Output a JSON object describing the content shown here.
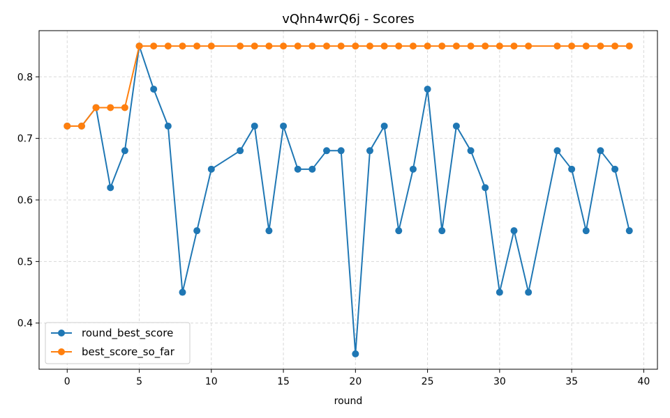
{
  "chart_data": {
    "type": "line",
    "title": "vQhn4wrQ6j - Scores",
    "xlabel": "round",
    "ylabel": "",
    "xlim": [
      -1.95,
      40.95
    ],
    "ylim": [
      0.325,
      0.875
    ],
    "xticks": [
      0,
      5,
      10,
      15,
      20,
      25,
      30,
      35,
      40
    ],
    "yticks": [
      0.4,
      0.5,
      0.6,
      0.7,
      0.8
    ],
    "xtick_labels": [
      "0",
      "5",
      "10",
      "15",
      "20",
      "25",
      "30",
      "35",
      "40"
    ],
    "ytick_labels": [
      "0.4",
      "0.5",
      "0.6",
      "0.7",
      "0.8"
    ],
    "grid": true,
    "legend_position": "lower-left",
    "series": [
      {
        "name": "round_best_score",
        "color": "#1f77b4",
        "x": [
          0,
          1,
          2,
          3,
          4,
          5,
          6,
          7,
          8,
          9,
          10,
          12,
          13,
          14,
          15,
          16,
          17,
          18,
          19,
          20,
          21,
          22,
          23,
          24,
          25,
          26,
          27,
          28,
          29,
          30,
          31,
          32,
          34,
          35,
          36,
          37,
          38,
          39
        ],
        "values": [
          0.72,
          0.72,
          0.75,
          0.62,
          0.68,
          0.85,
          0.78,
          0.72,
          0.45,
          0.55,
          0.65,
          0.68,
          0.72,
          0.55,
          0.72,
          0.65,
          0.65,
          0.68,
          0.68,
          0.35,
          0.68,
          0.72,
          0.55,
          0.65,
          0.78,
          0.55,
          0.72,
          0.68,
          0.62,
          0.45,
          0.55,
          0.45,
          0.68,
          0.65,
          0.55,
          0.68,
          0.65,
          0.55
        ]
      },
      {
        "name": "best_score_so_far",
        "color": "#ff7f0e",
        "x": [
          0,
          1,
          2,
          3,
          4,
          5,
          6,
          7,
          8,
          9,
          10,
          12,
          13,
          14,
          15,
          16,
          17,
          18,
          19,
          20,
          21,
          22,
          23,
          24,
          25,
          26,
          27,
          28,
          29,
          30,
          31,
          32,
          34,
          35,
          36,
          37,
          38,
          39
        ],
        "values": [
          0.72,
          0.72,
          0.75,
          0.75,
          0.75,
          0.85,
          0.85,
          0.85,
          0.85,
          0.85,
          0.85,
          0.85,
          0.85,
          0.85,
          0.85,
          0.85,
          0.85,
          0.85,
          0.85,
          0.85,
          0.85,
          0.85,
          0.85,
          0.85,
          0.85,
          0.85,
          0.85,
          0.85,
          0.85,
          0.85,
          0.85,
          0.85,
          0.85,
          0.85,
          0.85,
          0.85,
          0.85,
          0.85
        ]
      }
    ]
  }
}
